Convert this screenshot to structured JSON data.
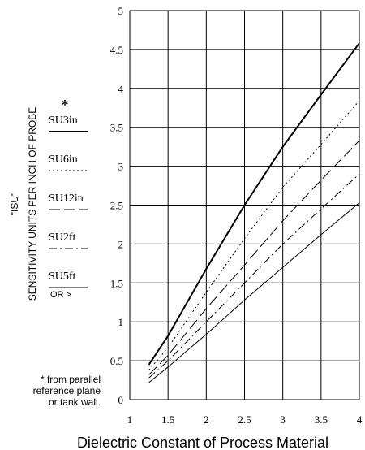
{
  "chart_data": {
    "type": "line",
    "xlabel": "Dielectric Constant of Process Material",
    "ylabel_line1": "\"ISU\"",
    "ylabel_line2": "SENSITIVITY UNITS PER INCH OF PROBE",
    "xlim": [
      1,
      4
    ],
    "ylim": [
      0,
      5
    ],
    "x_ticks": [
      "1",
      "1.5",
      "2",
      "2.5",
      "3",
      "3.5",
      "4"
    ],
    "y_ticks": [
      "0",
      "0.5",
      "1",
      "1.5",
      "2",
      "2.5",
      "3",
      "3.5",
      "4",
      "4.5",
      "5"
    ],
    "grid": true,
    "asterisk": "*",
    "legend_extra": "OR >",
    "footnote": [
      "* from parallel",
      "reference plane",
      "or tank wall."
    ],
    "series": [
      {
        "name": "SU3in",
        "style": "solid-thick",
        "points": [
          [
            1.25,
            0.45
          ],
          [
            1.5,
            0.82
          ],
          [
            2.0,
            1.68
          ],
          [
            2.5,
            2.5
          ],
          [
            3.0,
            3.25
          ],
          [
            3.5,
            3.92
          ],
          [
            4.0,
            4.58
          ]
        ]
      },
      {
        "name": "SU6in",
        "style": "dotted",
        "points": [
          [
            1.25,
            0.38
          ],
          [
            1.5,
            0.67
          ],
          [
            2.0,
            1.38
          ],
          [
            2.5,
            2.07
          ],
          [
            3.0,
            2.73
          ],
          [
            3.5,
            3.28
          ],
          [
            4.0,
            3.84
          ]
        ]
      },
      {
        "name": "SU12in",
        "style": "long-dash",
        "points": [
          [
            1.25,
            0.32
          ],
          [
            1.5,
            0.57
          ],
          [
            2.0,
            1.17
          ],
          [
            2.5,
            1.73
          ],
          [
            3.0,
            2.3
          ],
          [
            3.5,
            2.82
          ],
          [
            4.0,
            3.33
          ]
        ]
      },
      {
        "name": "SU2ft",
        "style": "dash-dot",
        "points": [
          [
            1.25,
            0.28
          ],
          [
            1.5,
            0.5
          ],
          [
            2.0,
            1.0
          ],
          [
            2.5,
            1.5
          ],
          [
            3.0,
            2.0
          ],
          [
            3.5,
            2.45
          ],
          [
            4.0,
            2.9
          ]
        ]
      },
      {
        "name": "SU5ft",
        "style": "solid-thin",
        "points": [
          [
            1.25,
            0.22
          ],
          [
            1.5,
            0.42
          ],
          [
            2.0,
            0.84
          ],
          [
            2.5,
            1.28
          ],
          [
            3.0,
            1.7
          ],
          [
            3.5,
            2.12
          ],
          [
            4.0,
            2.53
          ]
        ]
      }
    ]
  }
}
